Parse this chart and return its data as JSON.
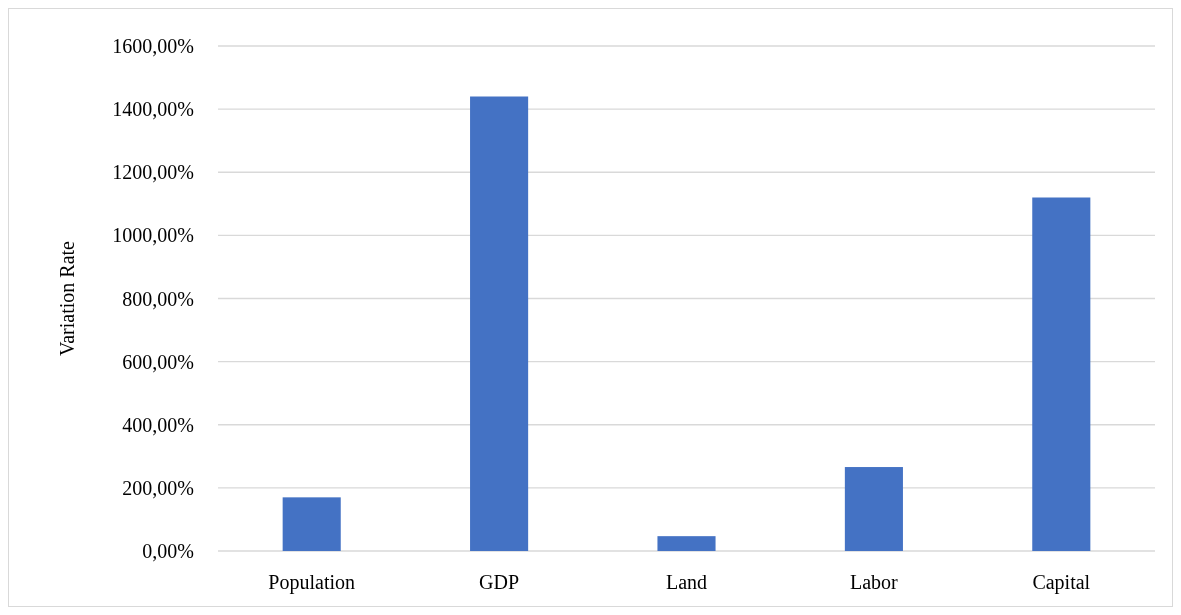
{
  "chart_data": {
    "type": "bar",
    "ylabel": "Variation Rate",
    "categories": [
      "Population",
      "GDP",
      "Land",
      "Labor",
      "Capital"
    ],
    "values": [
      170,
      1440,
      47,
      266,
      1120
    ],
    "color": "#4472c4",
    "ylim": [
      0,
      1600
    ],
    "yticks": [
      {
        "value": 0,
        "label": "0,00%"
      },
      {
        "value": 200,
        "label": "200,00%"
      },
      {
        "value": 400,
        "label": "400,00%"
      },
      {
        "value": 600,
        "label": "600,00%"
      },
      {
        "value": 800,
        "label": "800,00%"
      },
      {
        "value": 1000,
        "label": "1000,00%"
      },
      {
        "value": 1200,
        "label": "1200,00%"
      },
      {
        "value": 1400,
        "label": "1400,00%"
      },
      {
        "value": 1600,
        "label": "1600,00%"
      }
    ],
    "grid": "y"
  }
}
